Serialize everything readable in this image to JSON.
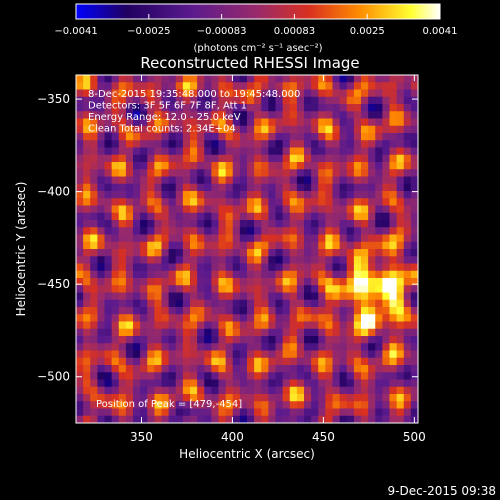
{
  "chart_data": {
    "type": "heatmap",
    "title": "Reconstructed RHESSI Image",
    "xlabel": "Heliocentric X (arcsec)",
    "ylabel": "Heliocentric Y (arcsec)",
    "xlim": [
      314,
      502
    ],
    "ylim": [
      -525,
      -337
    ],
    "x_ticks": [
      350,
      400,
      450,
      500
    ],
    "y_ticks": [
      -350,
      -400,
      -450,
      -500
    ],
    "x_tick_labels": [
      "350",
      "400",
      "450",
      "500"
    ],
    "y_tick_labels": [
      "−350",
      "−400",
      "−450",
      "−500"
    ],
    "colorbar": {
      "min": -0.0041,
      "max": 0.0041,
      "tick_labels": [
        "−0.0041",
        "−0.0025",
        "−0.00083",
        "0.00083",
        "0.0025",
        "0.0041"
      ],
      "units_label": "(photons cm⁻² s⁻¹ asec⁻²)",
      "colormap": [
        "#0000ff",
        "#200060",
        "#5b1a8e",
        "#9a2a6a",
        "#d93020",
        "#ff8c00",
        "#ffff30",
        "#ffffff"
      ]
    },
    "peak_position": [
      479,
      -454
    ],
    "info_lines": [
      "8-Dec-2015 19:35:48.000 to 19:45:48.000",
      "Detectors: 3F 5F 6F 7F 8F, Att 1",
      "Energy Range: 12.0 - 25.0 keV",
      "Clean    Total counts: 2.34E+04"
    ],
    "peak_label": "Position of Peak = [479,-454]",
    "footer": "9-Dec-2015 09:38"
  }
}
